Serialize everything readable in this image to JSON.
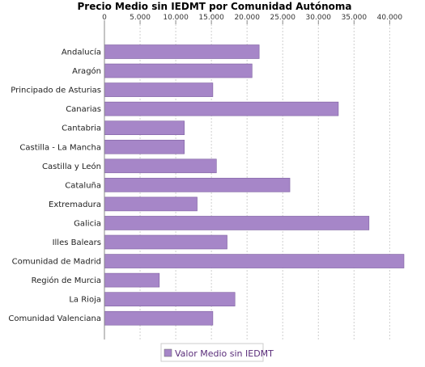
{
  "chart_data": {
    "type": "bar",
    "orientation": "horizontal",
    "title": "Precio Medio sin IEDMT por Comunidad Autónoma",
    "xlim": [
      0,
      42000
    ],
    "xticks": [
      0,
      5000,
      10000,
      15000,
      20000,
      25000,
      30000,
      35000,
      40000
    ],
    "xtick_labels": [
      "0",
      "5.000",
      "10.000",
      "15.000",
      "20.000",
      "25.000",
      "30.000",
      "35.000",
      "40.000"
    ],
    "grid": "vertical-dashed",
    "legend_position": "bottom",
    "categories": [
      "Andalucía",
      "Aragón",
      "Principado de Asturias",
      "Canarias",
      "Cantabria",
      "Castilla - La Mancha",
      "Castilla y León",
      "Cataluña",
      "Extremadura",
      "Galicia",
      "Illes Balears",
      "Comunidad de Madrid",
      "Región de Murcia",
      "La Rioja",
      "Comunidad Valenciana"
    ],
    "series": [
      {
        "name": "Valor Medio sin IEDMT",
        "color": "#a686c8",
        "values": [
          21700,
          20700,
          15200,
          32800,
          11200,
          11200,
          15700,
          26000,
          13000,
          37100,
          17200,
          42000,
          7700,
          18300,
          15200
        ]
      }
    ]
  }
}
